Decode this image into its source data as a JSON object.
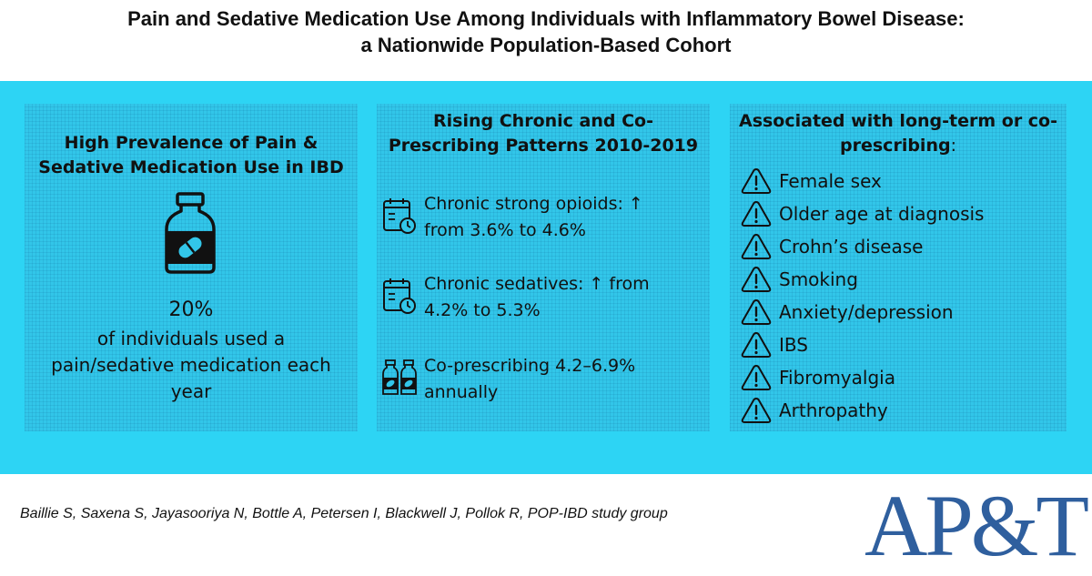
{
  "title": {
    "line1": "Pain and Sedative Medication Use Among Individuals with Inflammatory Bowel Disease:",
    "line2": "a Nationwide Population-Based Cohort"
  },
  "panel1": {
    "heading_line1": "High Prevalence of Pain &",
    "heading_line2": "Sedative Medication Use in IBD",
    "icon": "medicine-bottle-icon",
    "stat_value": "20%",
    "stat_desc_line1": "of individuals used a",
    "stat_desc_line2": "pain/sedative medication each",
    "stat_desc_line3": "year"
  },
  "panel2": {
    "heading_line1": "Rising Chronic and Co-",
    "heading_line2": "Prescribing Patterns 2010-2019",
    "items": [
      {
        "icon": "calendar-clock-icon",
        "line1": "Chronic strong opioids: ↑",
        "line2": "from 3.6% to 4.6%"
      },
      {
        "icon": "calendar-clock-icon",
        "line1": "Chronic sedatives: ↑ from",
        "line2": "4.2% to 5.3%"
      },
      {
        "icon": "two-bottles-icon",
        "line1": "Co-prescribing 4.2–6.9%",
        "line2": "annually"
      }
    ]
  },
  "panel3": {
    "heading_line1": "Associated with long-term or co-",
    "heading_line2": "prescribing",
    "heading_colon": ":",
    "icon": "warning-triangle-icon",
    "factors": [
      "Female sex",
      "Older age at diagnosis",
      "Crohn’s disease",
      "Smoking",
      "Anxiety/depression",
      "IBS",
      "Fibromyalgia",
      "Arthropathy"
    ]
  },
  "footer": {
    "authors": "Baillie S, Saxena S, Jayasooriya N, Bottle A, Petersen I, Blackwell J, Pollok R, POP-IBD study group",
    "logo": "AP&T"
  },
  "colors": {
    "band": "#2dd4f4",
    "panel": "#32c6e9",
    "logo": "#2f5f9e"
  }
}
